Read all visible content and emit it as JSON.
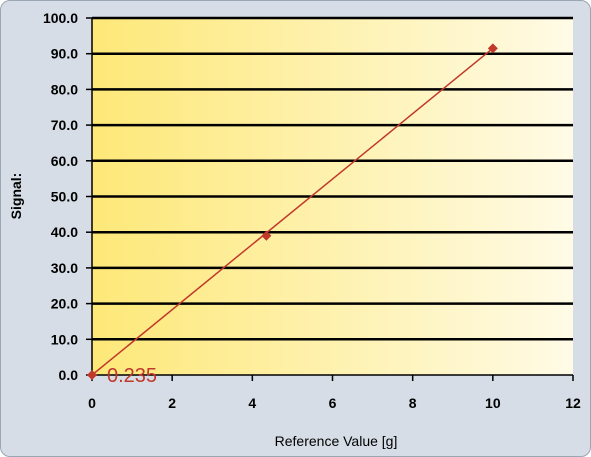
{
  "chart_data": {
    "type": "scatter",
    "xlabel": "Reference Value [g]",
    "ylabel": "Signal:",
    "xlim": [
      0,
      12
    ],
    "ylim": [
      0,
      100
    ],
    "x_ticks": [
      "0",
      "2",
      "4",
      "6",
      "8",
      "10",
      "12"
    ],
    "y_ticks": [
      "0.0",
      "10.0",
      "20.0",
      "30.0",
      "40.0",
      "50.0",
      "60.0",
      "70.0",
      "80.0",
      "90.0",
      "100.0"
    ],
    "grid": "horizontal",
    "points": [
      {
        "x": 0,
        "y": 0
      },
      {
        "x": 4.35,
        "y": 39
      },
      {
        "x": 10,
        "y": 91.5
      }
    ],
    "fit_line": [
      [
        0,
        0
      ],
      [
        10,
        91.5
      ]
    ],
    "annotation": "0.235",
    "colors": {
      "marker": "#c0392b",
      "line": "#c0392b",
      "plot_bg_start": "#fde878",
      "plot_bg_end": "#fffbe6",
      "grid": "#000000"
    }
  }
}
